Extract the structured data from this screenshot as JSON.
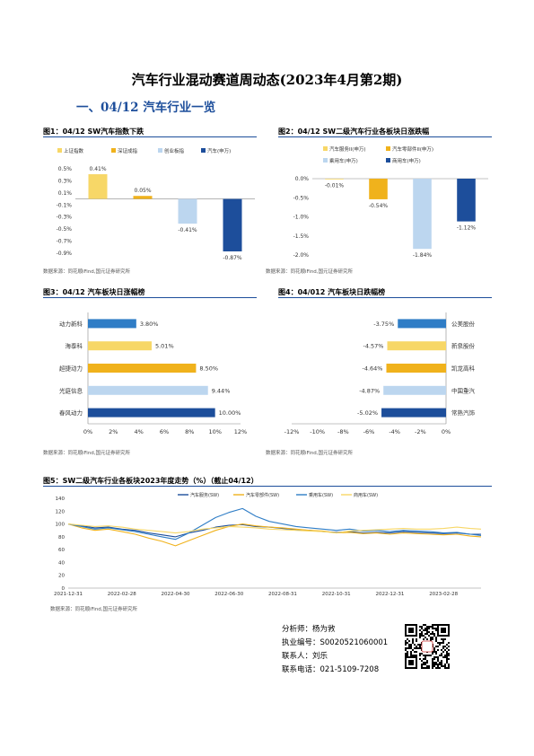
{
  "title": "汽车行业混动赛道周动态(2023年4月第2期)",
  "section_heading": "一、04/12 汽车行业一览",
  "source_note": "数据来源：同花顺iFind,国元证券研究所",
  "colors": {
    "blue_dark": "#1d4e9b",
    "blue_mid": "#2f7dc6",
    "blue_light": "#bcd6ef",
    "yellow": "#f7d767",
    "gold": "#f0b21c"
  },
  "figures": [
    {
      "label": "图1：04/12 SW汽车指数下跌",
      "chart_data": {
        "type": "bar",
        "categories": [
          "上证指数",
          "深证成指",
          "创业板指",
          "汽车(申万)"
        ],
        "values": [
          0.41,
          0.05,
          -0.41,
          -0.87
        ],
        "value_labels": [
          "0.41%",
          "0.05%",
          "-0.41%",
          "-0.87%"
        ],
        "colors": [
          "#f7d767",
          "#f0b21c",
          "#bcd6ef",
          "#1d4e9b"
        ],
        "ylim": [
          -0.9,
          0.5
        ],
        "yticks": [
          0.5,
          0.3,
          0.1,
          -0.1,
          -0.3,
          -0.5,
          -0.7,
          -0.9
        ],
        "ytick_labels": [
          "0.5%",
          "0.3%",
          "0.1%",
          "-0.1%",
          "-0.3%",
          "-0.5%",
          "-0.7%",
          "-0.9%"
        ],
        "legend": [
          "上证指数",
          "深证成指",
          "创业板指",
          "汽车(申万)"
        ],
        "legend_position": "top"
      }
    },
    {
      "label": "图2：04/12 SW二级汽车行业各板块日涨跌幅",
      "chart_data": {
        "type": "bar",
        "categories": [
          "汽车服务II(申万)",
          "汽车零部件II(申万)",
          "乘用车(申万)",
          "商用车(申万)"
        ],
        "values": [
          -0.01,
          -0.54,
          -1.84,
          -1.12
        ],
        "value_labels": [
          "-0.01%",
          "-0.54%",
          "-1.84%",
          "-1.12%"
        ],
        "colors": [
          "#f7d767",
          "#f0b21c",
          "#bcd6ef",
          "#1d4e9b"
        ],
        "ylim": [
          -2.0,
          0.0
        ],
        "yticks": [
          0.0,
          -0.5,
          -1.0,
          -1.5,
          -2.0
        ],
        "ytick_labels": [
          "0.0%",
          "-0.5%",
          "-1.0%",
          "-1.5%",
          "-2.0%"
        ],
        "legend": [
          "汽车服务II(申万)",
          "汽车零部件II(申万)",
          "乘用车(申万)",
          "商用车(申万)"
        ],
        "legend_position": "top"
      }
    },
    {
      "label": "图3：04/12 汽车板块日涨幅榜",
      "chart_data": {
        "type": "bar",
        "orientation": "horizontal",
        "categories": [
          "动力新科",
          "海泰科",
          "超捷动力",
          "光庭信息",
          "春风动力"
        ],
        "values": [
          3.8,
          5.01,
          8.5,
          9.44,
          10.0
        ],
        "value_labels": [
          "3.80%",
          "5.01%",
          "8.50%",
          "9.44%",
          "10.00%"
        ],
        "colors": [
          "#2f7dc6",
          "#f7d767",
          "#f0b21c",
          "#bcd6ef",
          "#1d4e9b"
        ],
        "xlim": [
          0,
          12
        ],
        "xticks": [
          0,
          2,
          4,
          6,
          8,
          10,
          12
        ],
        "xtick_labels": [
          "0%",
          "2%",
          "4%",
          "6%",
          "8%",
          "10%",
          "12%"
        ]
      }
    },
    {
      "label": "图4：04/012 汽车板块日跌幅榜",
      "chart_data": {
        "type": "bar",
        "orientation": "horizontal",
        "categories": [
          "公美股份",
          "新泉股份",
          "凯龙高科",
          "中国重汽",
          "常熟汽饰"
        ],
        "values": [
          -3.75,
          -4.57,
          -4.64,
          -4.87,
          -5.02
        ],
        "value_labels": [
          "-3.75%",
          "-4.57%",
          "-4.64%",
          "-4.87%",
          "-5.02%"
        ],
        "colors": [
          "#2f7dc6",
          "#f7d767",
          "#f0b21c",
          "#bcd6ef",
          "#1d4e9b"
        ],
        "xlim": [
          -12,
          0
        ],
        "xticks": [
          -12,
          -10,
          -8,
          -6,
          -4,
          -2,
          0
        ],
        "xtick_labels": [
          "-12%",
          "-10%",
          "-8%",
          "-6%",
          "-4%",
          "-2%",
          "0%"
        ]
      }
    },
    {
      "label": "图5：SW二级汽车行业各板块2023年度走势（%）（截止04/12）",
      "chart_data": {
        "type": "line",
        "ylim": [
          0,
          140
        ],
        "yticks": [
          0,
          20,
          40,
          60,
          80,
          100,
          120,
          140
        ],
        "x_tick_labels": [
          "2021-12-31",
          "2022-02-28",
          "2022-04-30",
          "2022-06-30",
          "2022-08-31",
          "2022-10-31",
          "2022-12-31",
          "2023-02-28"
        ],
        "x_months_from_start": [
          0,
          2,
          4,
          6,
          8,
          10,
          12,
          14
        ],
        "x_months_total": 15.4,
        "legend": [
          "汽车服务(SW)",
          "汽车零部件(SW)",
          "乘用车(SW)",
          "商用车(SW)"
        ],
        "series": [
          {
            "name": "汽车服务(SW)",
            "color": "#1d4e9b",
            "months": [
              0,
              0.5,
              1,
              1.5,
              2,
              2.5,
              3,
              3.5,
              4,
              4.5,
              5,
              5.5,
              6,
              6.5,
              7,
              7.5,
              8,
              8.5,
              9,
              9.5,
              10,
              10.5,
              11,
              11.5,
              12,
              12.5,
              13,
              13.5,
              14,
              14.5,
              15,
              15.4
            ],
            "values": [
              100,
              97,
              94,
              95,
              92,
              90,
              86,
              83,
              80,
              86,
              90,
              95,
              98,
              99,
              96,
              95,
              93,
              91,
              90,
              88,
              87,
              88,
              86,
              87,
              86,
              88,
              87,
              86,
              85,
              86,
              84,
              84
            ]
          },
          {
            "name": "汽车零部件(SW)",
            "color": "#f0b21c",
            "months": [
              0,
              0.5,
              1,
              1.5,
              2,
              2.5,
              3,
              3.5,
              4,
              4.5,
              5,
              5.5,
              6,
              6.5,
              7,
              7.5,
              8,
              8.5,
              9,
              9.5,
              10,
              10.5,
              11,
              11.5,
              12,
              12.5,
              13,
              13.5,
              14,
              14.5,
              15,
              15.4
            ],
            "values": [
              100,
              94,
              90,
              92,
              88,
              84,
              78,
              73,
              66,
              74,
              82,
              90,
              96,
              100,
              97,
              95,
              94,
              92,
              90,
              89,
              86,
              87,
              85,
              86,
              84,
              86,
              85,
              84,
              83,
              84,
              81,
              80
            ]
          },
          {
            "name": "乘用车(SW)",
            "color": "#2f7dc6",
            "months": [
              0,
              0.5,
              1,
              1.5,
              2,
              2.5,
              3,
              3.5,
              4,
              4.5,
              5,
              5.5,
              6,
              6.5,
              7,
              7.5,
              8,
              8.5,
              9,
              9.5,
              10,
              10.5,
              11,
              11.5,
              12,
              12.5,
              13,
              13.5,
              14,
              14.5,
              15,
              15.4
            ],
            "values": [
              100,
              96,
              92,
              94,
              91,
              88,
              84,
              80,
              76,
              86,
              98,
              110,
              118,
              124,
              112,
              104,
              100,
              96,
              94,
              92,
              90,
              92,
              89,
              90,
              88,
              90,
              89,
              88,
              86,
              87,
              84,
              82
            ]
          },
          {
            "name": "商用车(SW)",
            "color": "#f7d767",
            "months": [
              0,
              0.5,
              1,
              1.5,
              2,
              2.5,
              3,
              3.5,
              4,
              4.5,
              5,
              5.5,
              6,
              6.5,
              7,
              7.5,
              8,
              8.5,
              9,
              9.5,
              10,
              10.5,
              11,
              11.5,
              12,
              12.5,
              13,
              13.5,
              14,
              14.5,
              15,
              15.4
            ],
            "values": [
              100,
              98,
              96,
              97,
              95,
              92,
              90,
              88,
              86,
              88,
              92,
              94,
              96,
              95,
              94,
              92,
              91,
              90,
              89,
              88,
              86,
              89,
              90,
              91,
              92,
              93,
              92,
              92,
              93,
              95,
              93,
              92
            ]
          }
        ]
      }
    }
  ],
  "contact": {
    "analyst": "分析师：杨为敩",
    "license": "执业编号：S0020521060001",
    "contact_person": "联系人：刘乐",
    "phone": "联系电话：021-5109-7208"
  }
}
